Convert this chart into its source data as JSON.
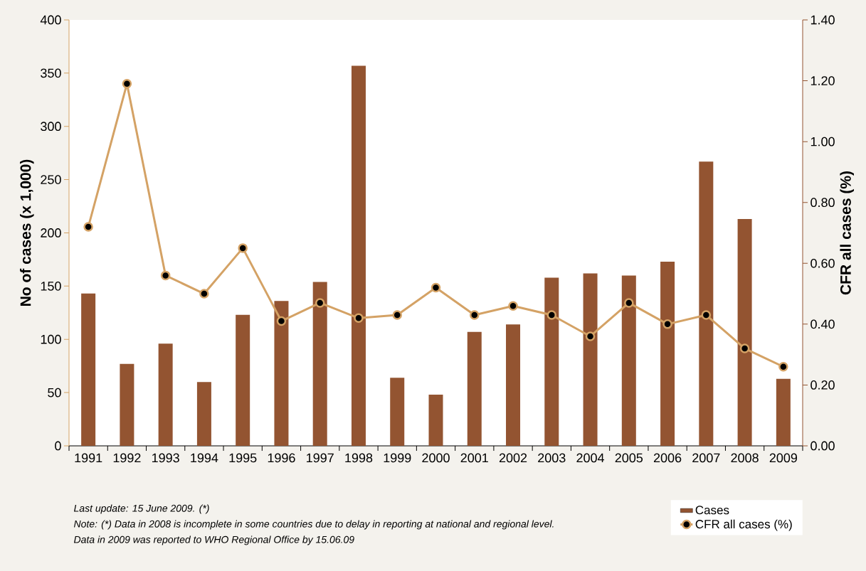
{
  "chart_data": {
    "type": "bar",
    "categories": [
      "1991",
      "1992",
      "1993",
      "1994",
      "1995",
      "1996",
      "1997",
      "1998",
      "1999",
      "2000",
      "2001",
      "2002",
      "2003",
      "2004",
      "2005",
      "2006",
      "2007",
      "2008",
      "2009"
    ],
    "series": [
      {
        "name": "Cases",
        "color": "#935431",
        "values": [
          143,
          77,
          96,
          60,
          123,
          136,
          154,
          357,
          64,
          48,
          107,
          114,
          158,
          162,
          160,
          173,
          267,
          213,
          63
        ]
      },
      {
        "name": "CFR all cases (%)",
        "type": "line",
        "axis": "y2",
        "color": "#d4a265",
        "values": [
          0.72,
          1.19,
          0.56,
          0.5,
          0.65,
          0.41,
          0.47,
          0.42,
          0.43,
          0.52,
          0.43,
          0.46,
          0.43,
          0.36,
          0.47,
          0.4,
          0.43,
          0.32,
          0.26
        ]
      }
    ],
    "ylabel": "No of cases (x 1,000)",
    "y2label": "CFR all cases (%)",
    "ylim": [
      0,
      400
    ],
    "yticks": [
      0,
      50,
      100,
      150,
      200,
      250,
      300,
      350,
      400
    ],
    "y2lim": [
      0,
      1.4
    ],
    "y2ticks": [
      {
        "value": 0,
        "label": "0.00"
      },
      {
        "value": 0.2,
        "label": "0.20"
      },
      {
        "value": 0.4,
        "label": "0.40"
      },
      {
        "value": 0.6,
        "label": "0.60"
      },
      {
        "value": 0.8,
        "label": "0.80"
      },
      {
        "value": 1.0,
        "label": "1.00"
      },
      {
        "value": 1.2,
        "label": "1.20"
      },
      {
        "value": 1.4,
        "label": "1.40"
      }
    ],
    "marker": "circle",
    "legend": "bottom right",
    "annotations": [
      "Last update: 15 June 2009. (*)",
      "Note: (*) Data in 2008  is incomplete  in some countries due to delay  in reporting at national and regional level.",
      "Data in 2009 was reported to WHO Regional Office by 15.06.09"
    ]
  }
}
